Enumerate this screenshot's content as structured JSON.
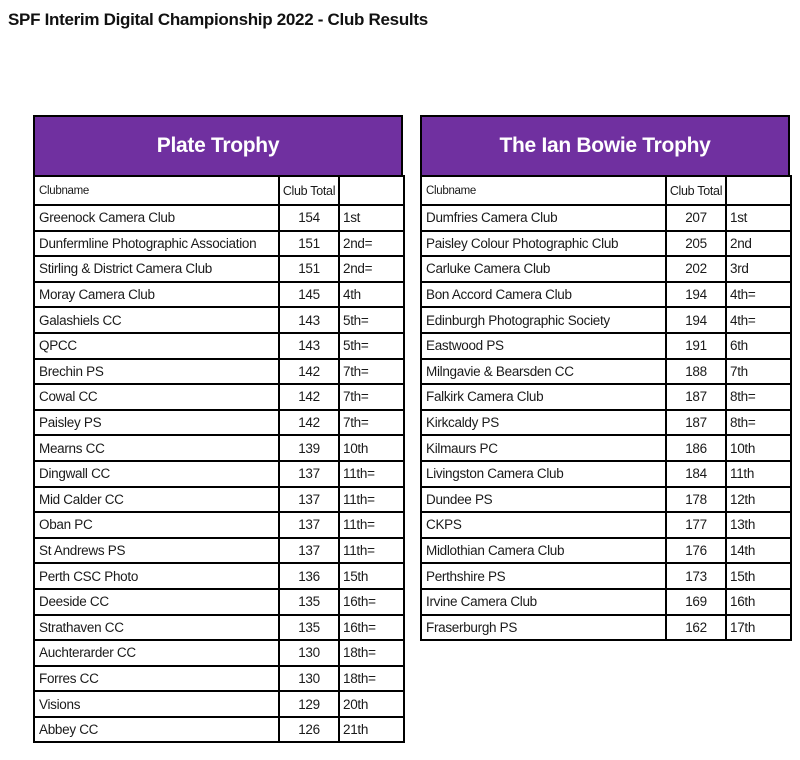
{
  "page": {
    "title": "SPF Interim Digital Championship 2022 - Club Results"
  },
  "colors": {
    "banner_purple": "#7030A0",
    "banner_text": "#FFFFFF",
    "border": "#000000"
  },
  "tables": [
    {
      "title": "Plate Trophy",
      "columns": [
        "Clubname",
        "Club Total",
        ""
      ],
      "rows": [
        [
          "Greenock Camera Club",
          "154",
          "1st"
        ],
        [
          "Dunfermline Photographic Association",
          "151",
          "2nd="
        ],
        [
          "Stirling & District Camera Club",
          "151",
          "2nd="
        ],
        [
          "Moray Camera Club",
          "145",
          "4th"
        ],
        [
          "Galashiels CC",
          "143",
          "5th="
        ],
        [
          "QPCC",
          "143",
          "5th="
        ],
        [
          "Brechin PS",
          "142",
          "7th="
        ],
        [
          "Cowal CC",
          "142",
          "7th="
        ],
        [
          "Paisley PS",
          "142",
          "7th="
        ],
        [
          "Mearns CC",
          "139",
          "10th"
        ],
        [
          "Dingwall CC",
          "137",
          "11th="
        ],
        [
          "Mid Calder CC",
          "137",
          "11th="
        ],
        [
          "Oban PC",
          "137",
          "11th="
        ],
        [
          "St Andrews PS",
          "137",
          "11th="
        ],
        [
          "Perth CSC Photo",
          "136",
          "15th"
        ],
        [
          "Deeside CC",
          "135",
          "16th="
        ],
        [
          "Strathaven CC",
          "135",
          "16th="
        ],
        [
          "Auchterarder CC",
          "130",
          "18th="
        ],
        [
          "Forres CC",
          "130",
          "18th="
        ],
        [
          "Visions",
          "129",
          "20th"
        ],
        [
          "Abbey CC",
          "126",
          "21th"
        ]
      ]
    },
    {
      "title": "The Ian Bowie Trophy",
      "columns": [
        "Clubname",
        "Club Total",
        ""
      ],
      "rows": [
        [
          "Dumfries Camera Club",
          "207",
          "1st"
        ],
        [
          "Paisley Colour Photographic Club",
          "205",
          "2nd"
        ],
        [
          "Carluke Camera Club",
          "202",
          "3rd"
        ],
        [
          "Bon Accord Camera Club",
          "194",
          "4th="
        ],
        [
          "Edinburgh Photographic Society",
          "194",
          "4th="
        ],
        [
          "Eastwood PS",
          "191",
          "6th"
        ],
        [
          "Milngavie & Bearsden CC",
          "188",
          "7th"
        ],
        [
          "Falkirk Camera Club",
          "187",
          "8th="
        ],
        [
          "Kirkcaldy PS",
          "187",
          "8th="
        ],
        [
          "Kilmaurs PC",
          "186",
          "10th"
        ],
        [
          "Livingston Camera Club",
          "184",
          "11th"
        ],
        [
          "Dundee PS",
          "178",
          "12th"
        ],
        [
          "CKPS",
          "177",
          "13th"
        ],
        [
          "Midlothian Camera Club",
          "176",
          "14th"
        ],
        [
          "Perthshire PS",
          "173",
          "15th"
        ],
        [
          "Irvine Camera Club",
          "169",
          "16th"
        ],
        [
          "Fraserburgh PS",
          "162",
          "17th"
        ]
      ]
    }
  ]
}
